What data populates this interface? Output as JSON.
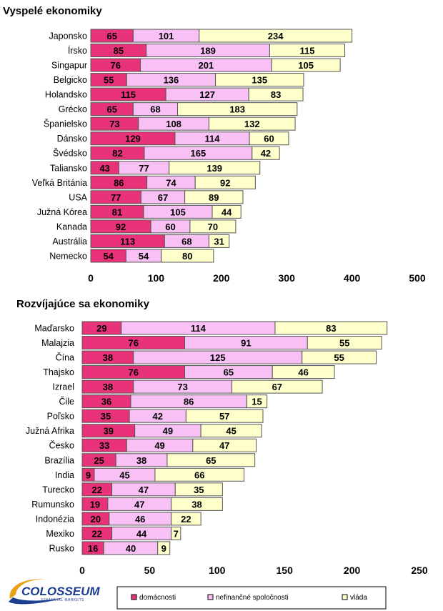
{
  "colors": {
    "domacnosti": "#e8337a",
    "nefinancne": "#f8c0f4",
    "vlada": "#ffffcc",
    "outline": "#555555"
  },
  "logo": {
    "name": "COLOSSEUM",
    "sub": "FINANCIAL MARKETS"
  },
  "legend": {
    "items": [
      {
        "key": "domacnosti",
        "label": "domácnosti"
      },
      {
        "key": "nefinancne",
        "label": "nefinančné spoločnosti"
      },
      {
        "key": "vlada",
        "label": "vláda"
      }
    ]
  },
  "chart_data": [
    {
      "type": "bar",
      "orientation": "horizontal",
      "stacked": true,
      "title": "Vyspelé ekonomiky",
      "categories": [
        "Japonsko",
        "Írsko",
        "Singapur",
        "Belgicko",
        "Holandsko",
        "Grécko",
        "Španielsko",
        "Dánsko",
        "Švédsko",
        "Taliansko",
        "Veľká Británia",
        "USA",
        "Južná Kórea",
        "Kanada",
        "Austrália",
        "Nemecko"
      ],
      "series": [
        {
          "name": "domácnosti",
          "values": [
            65,
            85,
            76,
            55,
            115,
            65,
            73,
            129,
            82,
            43,
            86,
            77,
            81,
            92,
            113,
            54
          ]
        },
        {
          "name": "nefinančné spoločnosti",
          "values": [
            101,
            189,
            201,
            136,
            127,
            68,
            108,
            114,
            165,
            77,
            74,
            67,
            105,
            60,
            68,
            54
          ]
        },
        {
          "name": "vláda",
          "values": [
            234,
            115,
            105,
            135,
            83,
            183,
            132,
            60,
            42,
            139,
            92,
            89,
            44,
            70,
            31,
            80
          ]
        }
      ],
      "xlim": [
        0,
        500
      ],
      "xticks": [
        0,
        100,
        200,
        300,
        400,
        500
      ],
      "grid": false
    },
    {
      "type": "bar",
      "orientation": "horizontal",
      "stacked": true,
      "title": "Rozvíjajúce sa ekonomiky",
      "categories": [
        "Maďarsko",
        "Malajzia",
        "Čína",
        "Thajsko",
        "Izrael",
        "Čile",
        "Poľsko",
        "Južná Afrika",
        "Česko",
        "Brazília",
        "India",
        "Turecko",
        "Rumunsko",
        "Indonézia",
        "Mexiko",
        "Rusko"
      ],
      "series": [
        {
          "name": "domácnosti",
          "values": [
            29,
            76,
            38,
            76,
            38,
            36,
            35,
            39,
            33,
            25,
            9,
            22,
            19,
            20,
            22,
            16
          ]
        },
        {
          "name": "nefinančné spoločnosti",
          "values": [
            114,
            91,
            125,
            65,
            73,
            86,
            42,
            49,
            49,
            38,
            45,
            47,
            47,
            46,
            44,
            40
          ]
        },
        {
          "name": "vláda",
          "values": [
            83,
            55,
            55,
            46,
            67,
            15,
            57,
            45,
            47,
            65,
            66,
            35,
            38,
            22,
            7,
            9
          ]
        }
      ],
      "xlim": [
        0,
        250
      ],
      "xticks": [
        0,
        50,
        100,
        150,
        200,
        250
      ],
      "grid": false
    }
  ]
}
